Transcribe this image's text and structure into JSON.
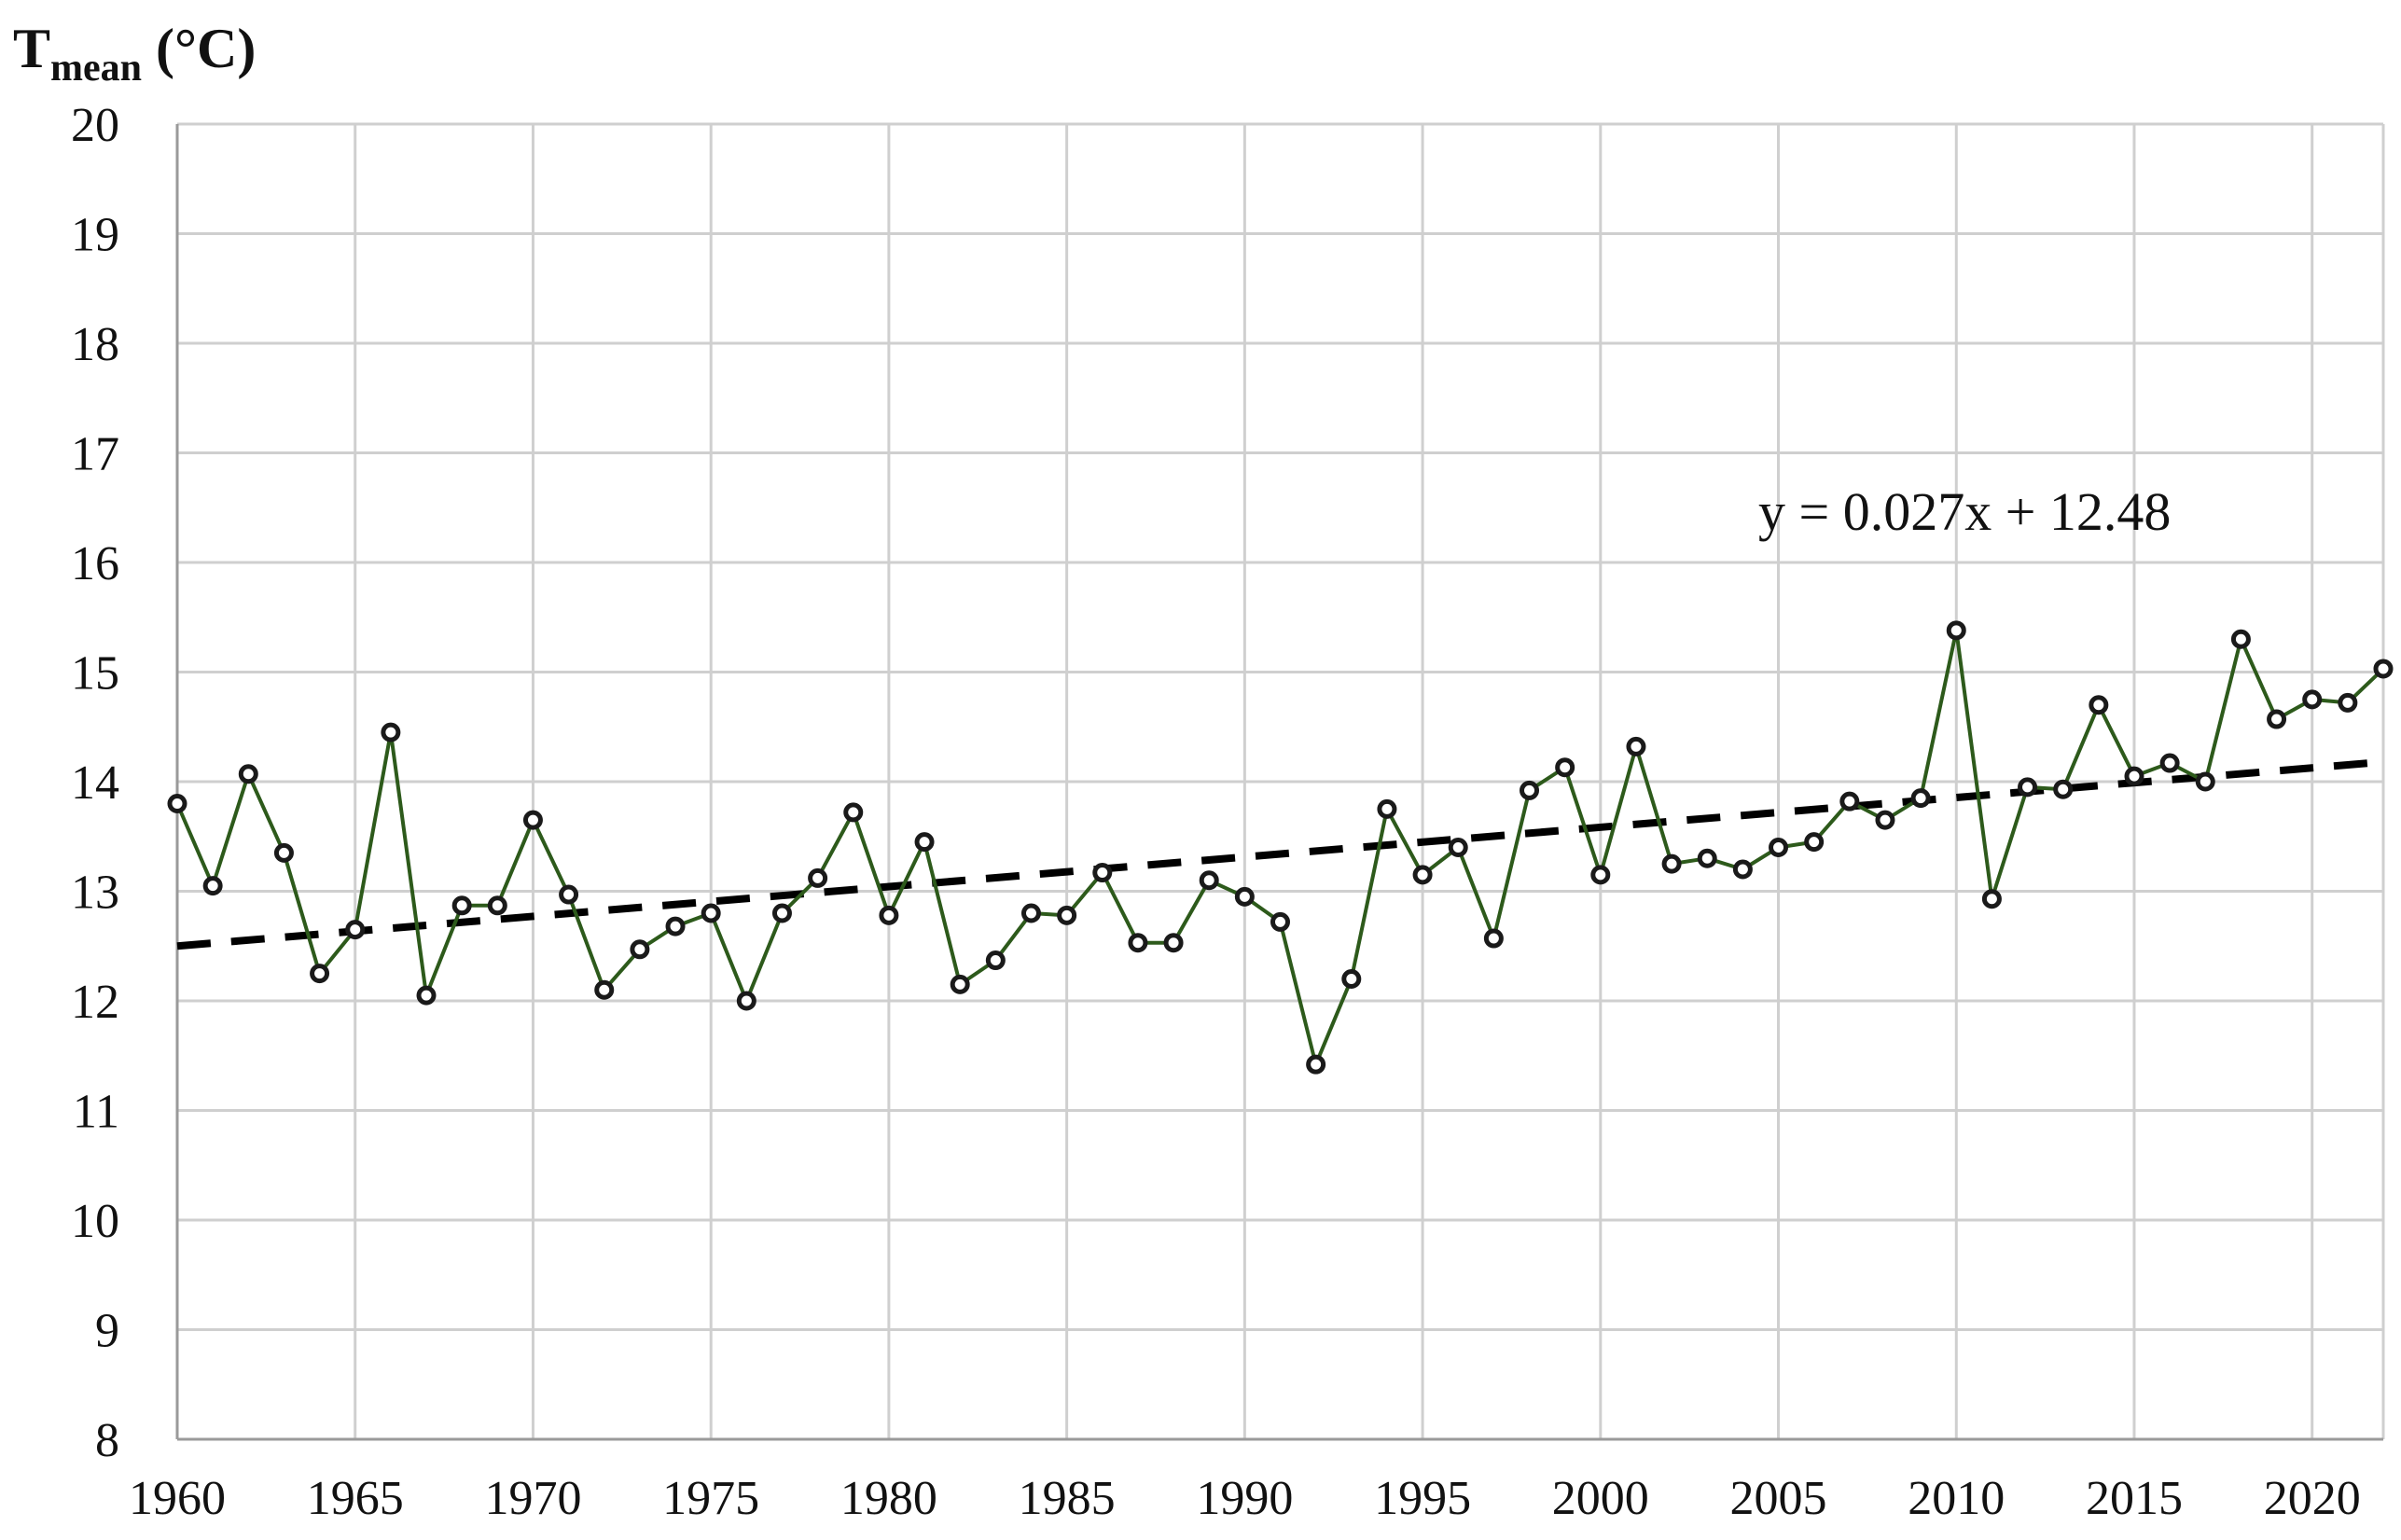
{
  "chart_data": {
    "type": "line",
    "ylabel": {
      "main": "T",
      "sub": "mean",
      "unit": " (°C)"
    },
    "xlim": [
      1960,
      2022
    ],
    "ylim": [
      8,
      20
    ],
    "x_ticks": [
      1960,
      1965,
      1970,
      1975,
      1980,
      1985,
      1990,
      1995,
      2000,
      2005,
      2010,
      2015,
      2020
    ],
    "y_ticks": [
      8,
      9,
      10,
      11,
      12,
      13,
      14,
      15,
      16,
      17,
      18,
      19,
      20
    ],
    "grid": true,
    "series": [
      {
        "color": "#2d5a1b",
        "marker_color": "#1a1a1a",
        "x": [
          1960,
          1961,
          1962,
          1963,
          1964,
          1965,
          1966,
          1967,
          1968,
          1969,
          1970,
          1971,
          1972,
          1973,
          1974,
          1975,
          1976,
          1977,
          1978,
          1979,
          1980,
          1981,
          1982,
          1983,
          1984,
          1985,
          1986,
          1987,
          1988,
          1989,
          1990,
          1991,
          1992,
          1993,
          1994,
          1995,
          1996,
          1997,
          1998,
          1999,
          2000,
          2001,
          2002,
          2003,
          2004,
          2005,
          2006,
          2007,
          2008,
          2009,
          2010,
          2011,
          2012,
          2013,
          2014,
          2015,
          2016,
          2017,
          2018,
          2019,
          2020,
          2021,
          2022
        ],
        "values": [
          13.8,
          13.05,
          14.07,
          13.35,
          12.25,
          12.65,
          14.45,
          12.05,
          12.87,
          12.87,
          13.65,
          12.97,
          12.1,
          12.47,
          12.68,
          12.8,
          12.0,
          12.8,
          13.12,
          13.72,
          12.78,
          13.45,
          12.15,
          12.37,
          12.8,
          12.78,
          13.17,
          12.53,
          12.53,
          13.1,
          12.95,
          12.72,
          11.42,
          12.2,
          13.75,
          13.15,
          13.4,
          12.57,
          13.92,
          14.13,
          13.15,
          14.32,
          13.25,
          13.3,
          13.2,
          13.4,
          13.45,
          13.82,
          13.65,
          13.85,
          15.38,
          12.93,
          13.95,
          13.93,
          14.7,
          14.05,
          14.17,
          14.0,
          15.3,
          14.57,
          14.75,
          14.72,
          15.03
        ]
      }
    ],
    "trendline": {
      "equation": "y = 0.027x + 12.48",
      "start": [
        1960,
        12.5
      ],
      "end": [
        2022,
        14.18
      ],
      "color": "#000000",
      "style": "dashed"
    }
  }
}
